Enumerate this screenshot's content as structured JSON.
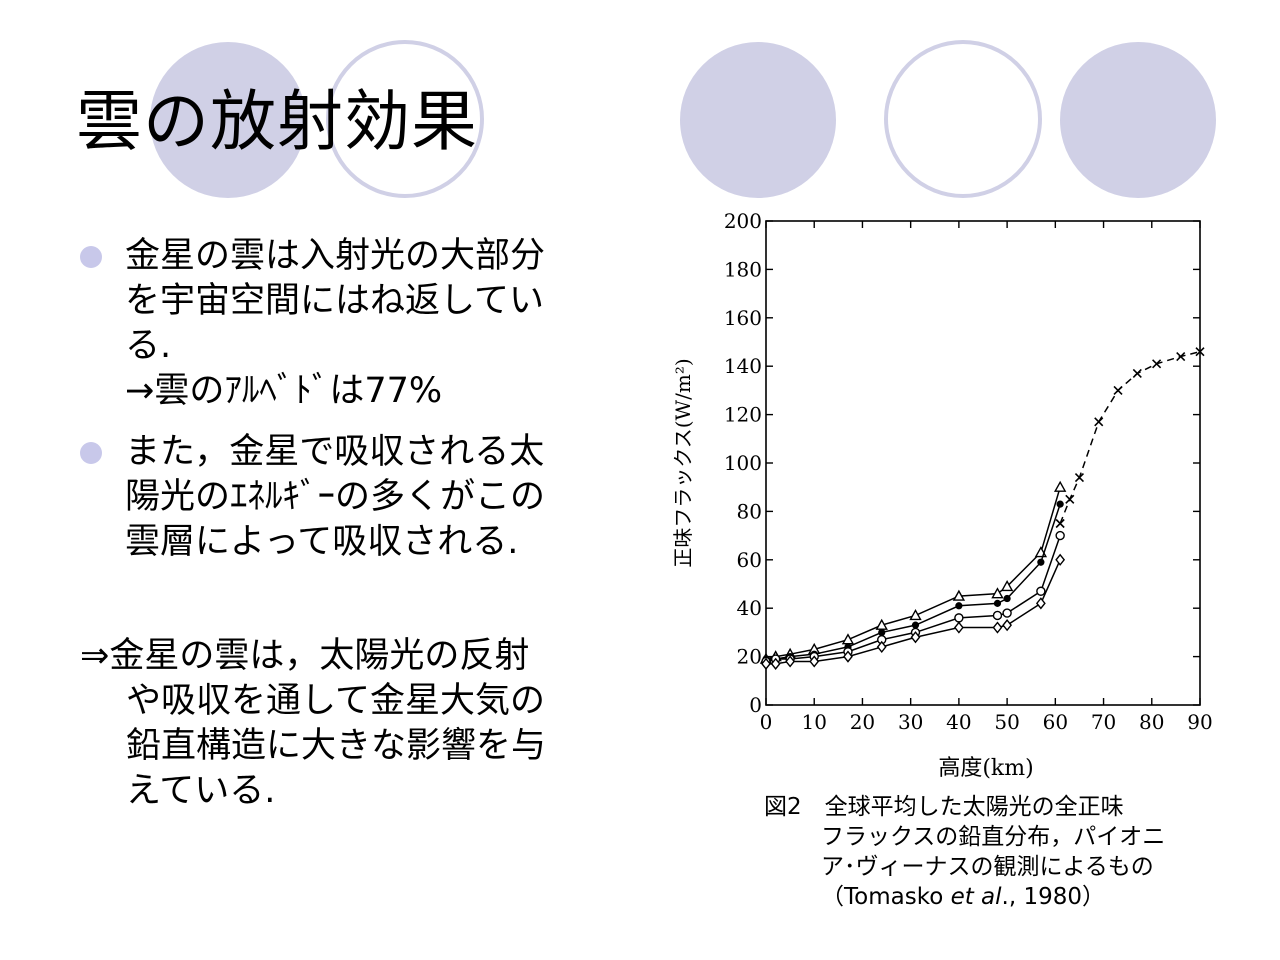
{
  "slide": {
    "title": "雲の放射効果",
    "bullets": [
      {
        "lines": [
          "金星の雲は入射光の大部分",
          "を宇宙空間にはね返してい",
          "る.",
          "→雲のｱﾙﾍﾞﾄﾞは77%"
        ]
      },
      {
        "lines": [
          "また，金星で吸収される太",
          "陽光のｴﾈﾙｷﾞｰの多くがこの",
          "雲層によって吸収される."
        ]
      }
    ],
    "conclusion": [
      "⇒金星の雲は，太陽光の反射",
      "や吸収を通して金星大気の",
      "鉛直構造に大きな影響を与",
      "えている."
    ],
    "caption": {
      "line1": "図2　全球平均した太陽光の全正味",
      "line2": "フラックスの鉛直分布，パイオニ",
      "line3": "ア･ヴィーナスの観測によるもの",
      "line4_open": "（Tomasko ",
      "line4_italic": "et al",
      "line4_close": "., 1980）"
    }
  },
  "colors": {
    "decor": "#d0d0e6",
    "bullet": "#c8c8ea"
  },
  "chart_data": {
    "type": "line",
    "xlabel": "高度(km)",
    "ylabel": "正味フラックス(W/m²)",
    "xlim": [
      0,
      90
    ],
    "ylim": [
      0,
      200
    ],
    "xticks": [
      0,
      10,
      20,
      30,
      40,
      50,
      60,
      70,
      80,
      90
    ],
    "yticks": [
      0,
      20,
      40,
      60,
      80,
      100,
      120,
      140,
      160,
      180,
      200
    ],
    "series": [
      {
        "marker": "x",
        "dashed": true,
        "x": [
          61,
          63,
          65,
          69,
          73,
          77,
          81,
          86,
          90
        ],
        "y": [
          75,
          85,
          94,
          117,
          130,
          137,
          141,
          144,
          146
        ]
      },
      {
        "marker": "triangle",
        "dashed": false,
        "x": [
          0,
          2,
          5,
          10,
          17,
          24,
          31,
          40,
          48,
          50,
          57,
          61
        ],
        "y": [
          19,
          20,
          21,
          23,
          27,
          33,
          37,
          45,
          46,
          49,
          63,
          90
        ]
      },
      {
        "marker": "dot",
        "dashed": false,
        "x": [
          0,
          2,
          5,
          10,
          17,
          24,
          31,
          40,
          48,
          50,
          57,
          61
        ],
        "y": [
          19,
          19,
          20,
          21,
          24,
          30,
          33,
          41,
          42,
          44,
          59,
          83
        ]
      },
      {
        "marker": "circle",
        "dashed": false,
        "x": [
          0,
          2,
          5,
          10,
          17,
          24,
          31,
          40,
          48,
          50,
          57,
          61
        ],
        "y": [
          18,
          19,
          19,
          20,
          22,
          27,
          30,
          36,
          37,
          38,
          47,
          70
        ]
      },
      {
        "marker": "diamond",
        "dashed": false,
        "x": [
          0,
          2,
          5,
          10,
          17,
          24,
          31,
          40,
          48,
          50,
          57,
          61
        ],
        "y": [
          17,
          17,
          18,
          18,
          20,
          24,
          28,
          32,
          32,
          33,
          42,
          60
        ]
      }
    ]
  }
}
